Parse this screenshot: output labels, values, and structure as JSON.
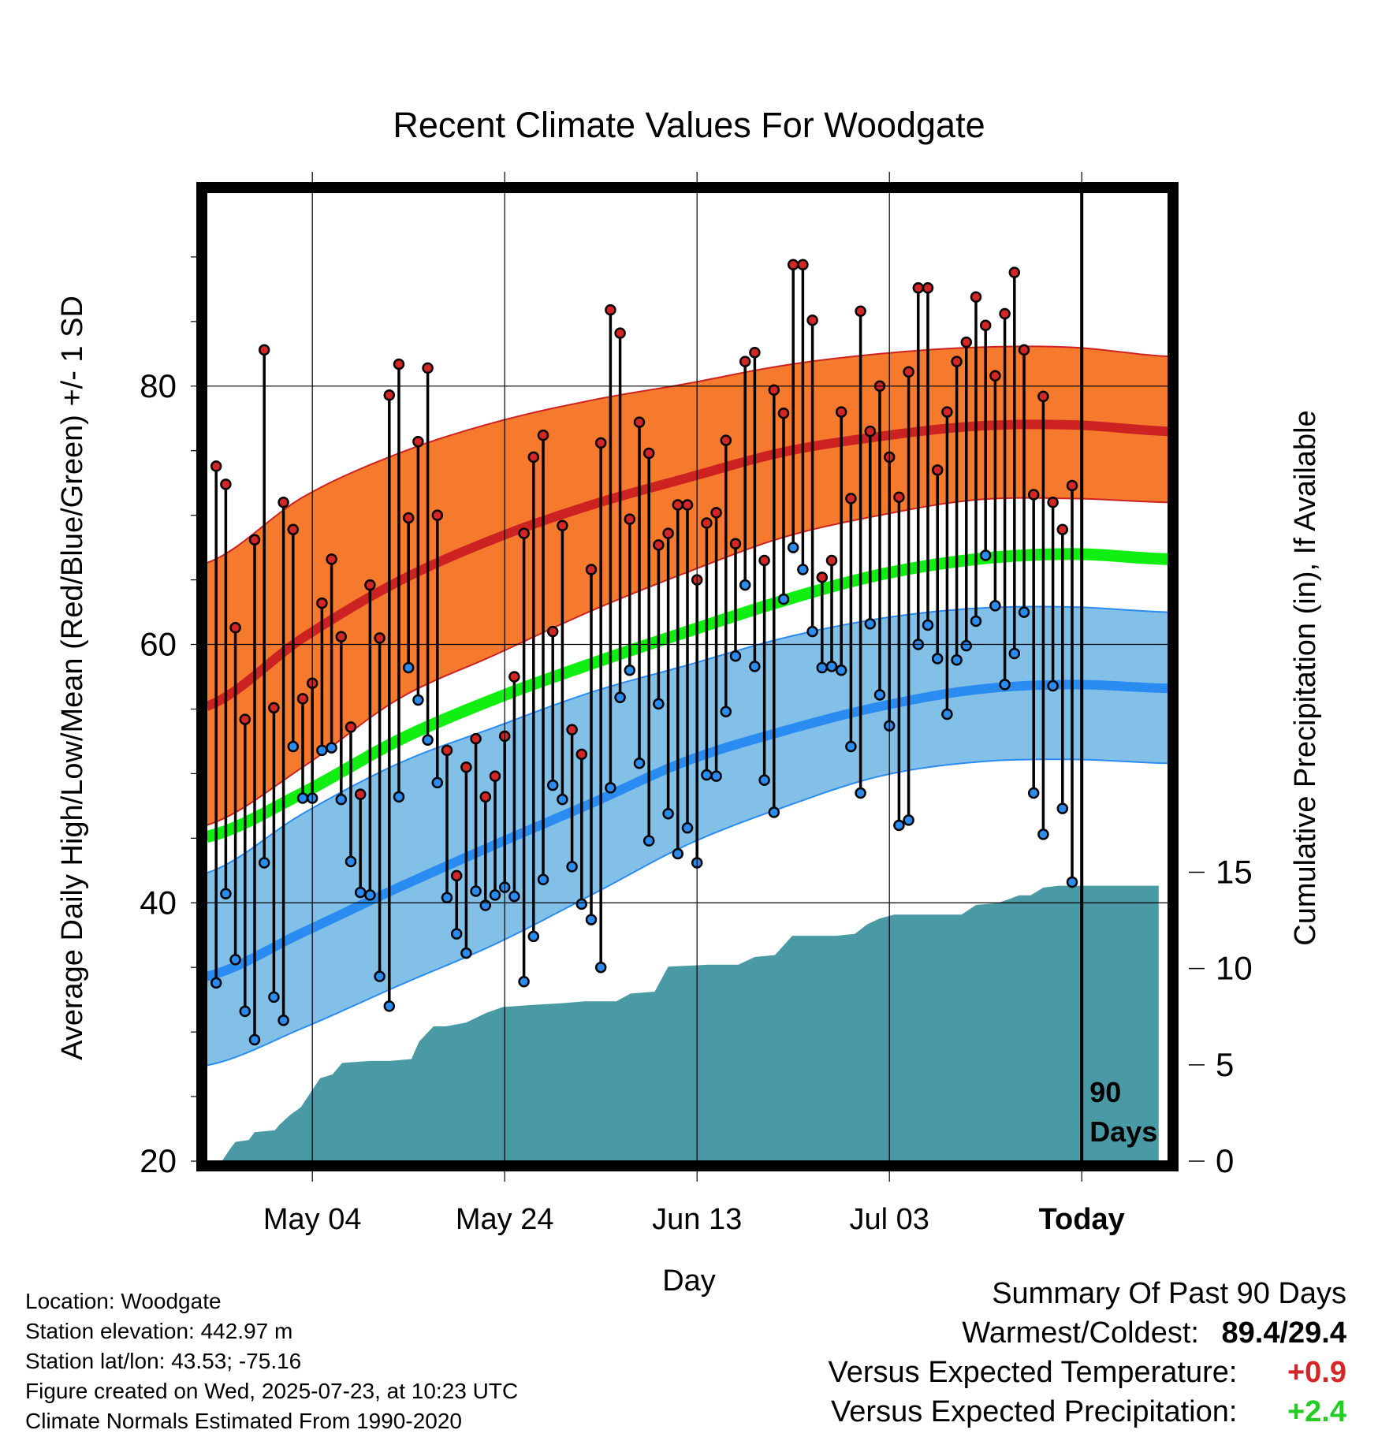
{
  "chart_data": {
    "type": "line",
    "title": "Recent Climate Values For Woodgate",
    "xlabel": "Day",
    "ylabel_left": "Average Daily High/Low/Mean (Red/Blue/Green) +/- 1 SD",
    "ylabel_right": "Cumulative Precipitation (in), If Available",
    "x_tick_labels": [
      "May 04",
      "May 24",
      "Jun 13",
      "Jul 03",
      "Today"
    ],
    "x_tick_days": [
      11,
      31,
      51,
      71,
      91
    ],
    "y_left_ticks": [
      20,
      40,
      60,
      80
    ],
    "y_left_range": [
      20,
      95
    ],
    "y_right_ticks": [
      0,
      5,
      10,
      15
    ],
    "y_right_range": [
      0,
      50.3
    ],
    "x_range": [
      0,
      100
    ],
    "window_label": [
      "90",
      "Days"
    ],
    "colors": {
      "high": "#cc2222",
      "high_band": "#f57a2e",
      "low": "#2a8cf0",
      "low_band": "#82c0e8",
      "mean": "#11ee11",
      "precip": "#4a9aa5",
      "frame": "#000000"
    },
    "normals": {
      "days": [
        0,
        10,
        20,
        30,
        40,
        50,
        60,
        70,
        80,
        90,
        100
      ],
      "high_mean": [
        55.2,
        60.5,
        64.9,
        68.2,
        70.8,
        72.9,
        74.9,
        76.1,
        76.9,
        77.0,
        76.5
      ],
      "high_upper": [
        66.3,
        71.4,
        74.8,
        77.2,
        78.9,
        80.2,
        81.6,
        82.5,
        83.0,
        83.0,
        82.3
      ],
      "high_lower": [
        46.0,
        50.5,
        55.8,
        59.2,
        62.6,
        65.6,
        68.3,
        70.0,
        71.2,
        71.3,
        71.0
      ],
      "mean": [
        45.1,
        48.5,
        52.6,
        55.8,
        58.5,
        61.0,
        63.4,
        65.4,
        66.6,
        67.0,
        66.6
      ],
      "low_mean": [
        34.3,
        37.7,
        41.2,
        44.5,
        47.7,
        51.0,
        53.3,
        55.2,
        56.5,
        56.9,
        56.6
      ],
      "low_upper": [
        42.3,
        46.9,
        50.8,
        53.6,
        56.3,
        58.4,
        60.5,
        62.0,
        62.8,
        62.9,
        62.5
      ],
      "low_lower": [
        27.4,
        30.3,
        33.6,
        36.8,
        40.6,
        44.5,
        47.4,
        49.8,
        50.9,
        51.1,
        50.8
      ]
    },
    "observations": {
      "high": [
        73.8,
        72.4,
        61.3,
        54.2,
        68.1,
        82.8,
        55.1,
        71.0,
        68.9,
        55.8,
        57.0,
        63.2,
        66.6,
        60.6,
        53.6,
        48.4,
        64.6,
        60.5,
        79.3,
        81.7,
        69.8,
        75.7,
        81.4,
        70.0,
        51.8,
        42.1,
        50.5,
        52.7,
        48.2,
        49.8,
        52.9,
        57.5,
        68.6,
        74.5,
        76.2,
        61.0,
        69.2,
        53.4,
        51.5,
        65.8,
        75.6,
        85.9,
        84.1,
        69.7,
        77.2,
        74.8,
        67.7,
        68.6,
        70.8,
        70.8,
        65.0,
        69.4,
        70.2,
        75.8,
        67.8,
        81.9,
        82.6,
        66.5,
        79.7,
        77.9,
        89.4,
        89.4,
        85.1,
        65.2,
        66.5,
        78.0,
        71.3,
        85.8,
        76.5,
        80.0,
        74.5,
        71.4,
        81.1,
        87.6,
        87.6,
        73.5,
        78.0,
        81.9,
        83.4,
        86.9,
        84.7,
        80.8,
        85.6,
        88.8,
        82.8,
        71.6,
        79.2,
        71.0,
        68.9,
        72.3
      ],
      "low": [
        33.8,
        40.7,
        35.6,
        31.6,
        29.4,
        43.1,
        32.7,
        30.9,
        52.1,
        48.1,
        48.1,
        51.8,
        52.0,
        48.0,
        43.2,
        40.8,
        40.6,
        34.3,
        32.0,
        48.2,
        58.2,
        55.7,
        52.6,
        49.3,
        40.4,
        37.6,
        36.1,
        40.9,
        39.8,
        40.6,
        41.2,
        40.5,
        33.9,
        37.4,
        41.8,
        49.1,
        48.0,
        42.8,
        39.9,
        38.7,
        35.0,
        48.9,
        55.9,
        58.0,
        50.8,
        44.8,
        55.4,
        46.9,
        43.8,
        45.8,
        43.1,
        49.9,
        49.8,
        54.8,
        59.1,
        64.6,
        58.3,
        49.5,
        47.0,
        63.5,
        67.5,
        65.8,
        61.0,
        58.2,
        58.3,
        58.0,
        52.1,
        48.5,
        61.6,
        56.1,
        53.7,
        46.0,
        46.4,
        60.0,
        61.5,
        58.9,
        54.6,
        58.8,
        59.9,
        61.8,
        66.9,
        63.0,
        56.9,
        59.3,
        62.5,
        48.5,
        45.3,
        56.8,
        47.3,
        41.6
      ]
    },
    "precip_cumulative_steps": [
      [
        1.6,
        0.0
      ],
      [
        2.4,
        0.6
      ],
      [
        3.0,
        1.0
      ],
      [
        4.4,
        1.1
      ],
      [
        5.0,
        1.5
      ],
      [
        7.1,
        1.6
      ],
      [
        7.6,
        1.9
      ],
      [
        8.7,
        2.4
      ],
      [
        9.8,
        2.8
      ],
      [
        11.8,
        4.3
      ],
      [
        13.1,
        4.5
      ],
      [
        14.1,
        5.1
      ],
      [
        17.0,
        5.2
      ],
      [
        19.0,
        5.2
      ],
      [
        21.3,
        5.3
      ],
      [
        22.1,
        6.2
      ],
      [
        23.6,
        7.0
      ],
      [
        24.9,
        7.0
      ],
      [
        27.0,
        7.2
      ],
      [
        29.1,
        7.7
      ],
      [
        30.8,
        8.0
      ],
      [
        33.5,
        8.1
      ],
      [
        37.0,
        8.2
      ],
      [
        39.3,
        8.3
      ],
      [
        42.6,
        8.3
      ],
      [
        44.1,
        8.7
      ],
      [
        46.6,
        8.8
      ],
      [
        48.0,
        10.1
      ],
      [
        52.2,
        10.2
      ],
      [
        55.3,
        10.2
      ],
      [
        57.0,
        10.6
      ],
      [
        59.1,
        10.7
      ],
      [
        60.9,
        11.7
      ],
      [
        65.4,
        11.7
      ],
      [
        67.4,
        11.8
      ],
      [
        68.7,
        12.3
      ],
      [
        70.0,
        12.6
      ],
      [
        71.5,
        12.8
      ],
      [
        78.5,
        12.8
      ],
      [
        80.0,
        13.3
      ],
      [
        82.3,
        13.4
      ],
      [
        83.4,
        13.6
      ],
      [
        84.5,
        13.8
      ],
      [
        85.7,
        13.8
      ],
      [
        87.0,
        14.2
      ],
      [
        88.6,
        14.3
      ],
      [
        99.0,
        14.3
      ]
    ]
  },
  "footer": {
    "location": "Location: Woodgate",
    "elevation": "Station elevation: 442.97 m",
    "latlon": "Station lat/lon: 43.53; -75.16",
    "created": "Figure created on Wed, 2025-07-23, at 10:23 UTC",
    "normals": "Climate Normals Estimated From 1990-2020"
  },
  "summary": {
    "heading": "Summary Of Past 90 Days",
    "warm_cold_label": "Warmest/Coldest:",
    "warm_cold_value": "89.4/29.4",
    "temp_label": "Versus Expected Temperature:",
    "temp_value": "+0.9",
    "temp_color": "#d42626",
    "precip_label": "Versus Expected Precipitation:",
    "precip_value": "+2.4",
    "precip_color": "#22cc22"
  }
}
